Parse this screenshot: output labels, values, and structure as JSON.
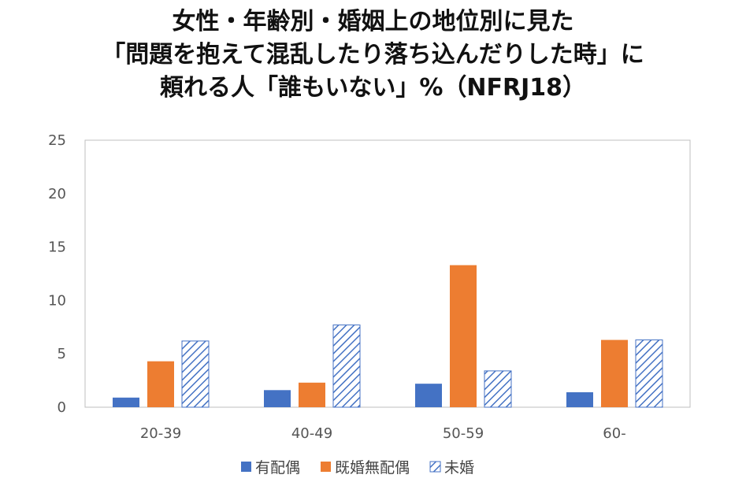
{
  "chart_data": {
    "type": "bar",
    "title_lines": [
      "女性・年齢別・婚姻上の地位別に見た",
      "「問題を抱えて混乱したり落ち込んだりした時」に",
      "頼れる人「誰もいない」%（NFRJ18）"
    ],
    "xlabel": "",
    "ylabel": "",
    "ylim": [
      0,
      25
    ],
    "yticks": [
      0,
      5,
      10,
      15,
      20,
      25
    ],
    "categories": [
      "20-39",
      "40-49",
      "50-59",
      "60-"
    ],
    "series": [
      {
        "name": "有配偶",
        "values": [
          0.9,
          1.6,
          2.2,
          1.4
        ],
        "color": "#4472C4",
        "pattern": "solid"
      },
      {
        "name": "既婚無配偶",
        "values": [
          4.3,
          2.3,
          13.3,
          6.3
        ],
        "color": "#ED7D31",
        "pattern": "solid"
      },
      {
        "name": "未婚",
        "values": [
          6.2,
          7.7,
          3.4,
          6.3
        ],
        "color": "#4472C4",
        "pattern": "diagonal-hatch"
      }
    ],
    "grid": false,
    "legend_position": "bottom"
  }
}
